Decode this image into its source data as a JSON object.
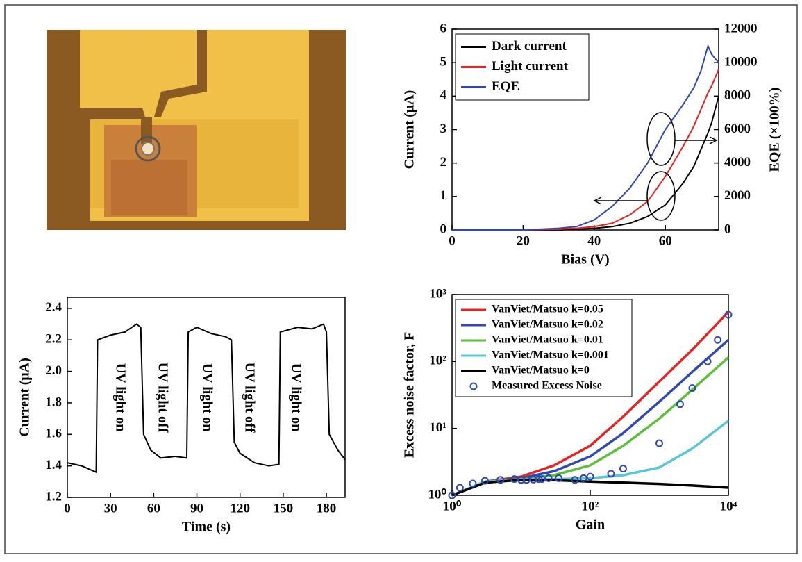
{
  "chart_data": [
    {
      "type": "line",
      "x_label": "Bias (V)",
      "y_label": "Current (μA)",
      "y2_label": "EQE (×100%)",
      "xlim": [
        0,
        75
      ],
      "xticks": [
        0,
        20,
        40,
        60
      ],
      "ylim": [
        0,
        6
      ],
      "yticks": [
        0,
        1,
        2,
        3,
        4,
        5,
        6
      ],
      "y2lim": [
        0,
        12000
      ],
      "y2ticks": [
        0,
        2000,
        4000,
        6000,
        8000,
        10000,
        12000
      ],
      "legend": "upper left",
      "x": [
        0,
        10,
        20,
        30,
        35,
        40,
        45,
        50,
        55,
        60,
        65,
        68,
        70,
        72,
        73,
        75
      ],
      "series": [
        {
          "name": "Dark current",
          "color": "#000000",
          "values": [
            0,
            0,
            0,
            0,
            0.02,
            0.05,
            0.1,
            0.2,
            0.4,
            0.75,
            1.4,
            1.9,
            2.4,
            2.9,
            3.2,
            4.0
          ]
        },
        {
          "name": "Light current",
          "color": "#e8231f",
          "values": [
            0,
            0,
            0,
            0.02,
            0.05,
            0.1,
            0.2,
            0.45,
            0.85,
            1.6,
            2.5,
            3.1,
            3.6,
            4.1,
            4.3,
            4.8
          ]
        },
        {
          "name": "EQE",
          "color": "#2f48b4",
          "axis": "y2",
          "values": [
            0,
            0,
            0,
            100,
            200,
            600,
            1400,
            2500,
            4000,
            6000,
            7500,
            8500,
            9500,
            11000,
            10500,
            10000
          ]
        }
      ]
    },
    {
      "type": "line",
      "x_label": "Time (s)",
      "y_label": "Current (μA)",
      "xlim": [
        0,
        193
      ],
      "xticks": [
        0,
        30,
        60,
        90,
        120,
        150,
        180
      ],
      "ylim": [
        1.2,
        2.47
      ],
      "yticks": [
        1.2,
        1.4,
        1.6,
        1.8,
        {
          "value": 2,
          "label": "2.0"
        },
        2.2,
        2.4
      ],
      "annotations": [
        "UV light on",
        "UV light off",
        "UV light on",
        "UV light off",
        "UV light on"
      ],
      "x": [
        0,
        10,
        20,
        21,
        30,
        40,
        48,
        51,
        53,
        58,
        65,
        75,
        83,
        84,
        90,
        100,
        110,
        114,
        116,
        120,
        130,
        140,
        147,
        148,
        160,
        170,
        178,
        180,
        182,
        188,
        193
      ],
      "color": "#000000",
      "values": [
        1.42,
        1.4,
        1.36,
        2.2,
        2.23,
        2.25,
        2.3,
        2.28,
        1.6,
        1.5,
        1.45,
        1.46,
        1.45,
        2.25,
        2.28,
        2.24,
        2.22,
        2.2,
        1.55,
        1.48,
        1.42,
        1.4,
        1.41,
        2.25,
        2.28,
        2.27,
        2.3,
        2.25,
        1.6,
        1.5,
        1.44
      ]
    },
    {
      "type": "line",
      "x_label": "Gain",
      "y_label": "Excess noise factor, F",
      "xlog": true,
      "ylog": true,
      "xlim": [
        1,
        10000
      ],
      "xticks": [
        {
          "value": 1,
          "label": "10⁰"
        },
        {
          "value": 100,
          "label": "10²"
        },
        {
          "value": 10000,
          "label": "10⁴"
        }
      ],
      "ylim": [
        1,
        1000
      ],
      "yticks": [
        {
          "value": 1,
          "label": "10⁰"
        },
        {
          "value": 10,
          "label": "10¹"
        },
        {
          "value": 100,
          "label": "10²"
        },
        {
          "value": 1000,
          "label": "10³"
        }
      ],
      "legend": "upper left",
      "series": [
        {
          "name": "VanViet/Matsuo k=0.05",
          "color": "#e8231f",
          "x": [
            1,
            3,
            10,
            30,
            100,
            300,
            1000,
            3000,
            10000
          ],
          "values": [
            1,
            1.6,
            1.9,
            2.8,
            5.5,
            15,
            50,
            150,
            550
          ]
        },
        {
          "name": "VanViet/Matsuo k=0.02",
          "color": "#2f48b4",
          "x": [
            1,
            3,
            10,
            30,
            100,
            300,
            1000,
            3000,
            10000
          ],
          "values": [
            1,
            1.6,
            1.8,
            2.3,
            3.8,
            8.5,
            25,
            70,
            210
          ]
        },
        {
          "name": "VanViet/Matsuo k=0.01",
          "color": "#5cbf3a",
          "x": [
            1,
            3,
            10,
            30,
            100,
            300,
            1000,
            3000,
            10000
          ],
          "values": [
            1,
            1.6,
            1.75,
            2.0,
            2.8,
            5.5,
            14,
            38,
            115
          ]
        },
        {
          "name": "VanViet/Matsuo k=0.001",
          "color": "#56c7d3",
          "x": [
            1,
            3,
            10,
            30,
            100,
            300,
            1000,
            3000,
            10000
          ],
          "values": [
            1,
            1.6,
            1.7,
            1.75,
            1.8,
            2.0,
            2.6,
            5,
            13
          ]
        },
        {
          "name": "VanViet/Matsuo k=0",
          "color": "#000000",
          "x": [
            1,
            3,
            10,
            30,
            100,
            300,
            1000,
            3000,
            10000
          ],
          "values": [
            1,
            1.55,
            1.7,
            1.68,
            1.6,
            1.55,
            1.48,
            1.4,
            1.3
          ]
        },
        {
          "name": "Measured Excess Noise",
          "color": "#2f48b4",
          "style": "markers",
          "x": [
            1,
            1.3,
            2,
            3,
            5,
            8,
            10,
            12,
            15,
            18,
            20,
            25,
            35,
            60,
            80,
            100,
            200,
            300,
            1000,
            2000,
            3000,
            5000,
            7000,
            10000
          ],
          "values": [
            1,
            1.3,
            1.5,
            1.65,
            1.7,
            1.75,
            1.7,
            1.7,
            1.72,
            1.75,
            1.75,
            1.8,
            1.8,
            1.7,
            1.8,
            1.9,
            2.1,
            2.5,
            6,
            23,
            40,
            100,
            210,
            500
          ]
        }
      ]
    }
  ]
}
